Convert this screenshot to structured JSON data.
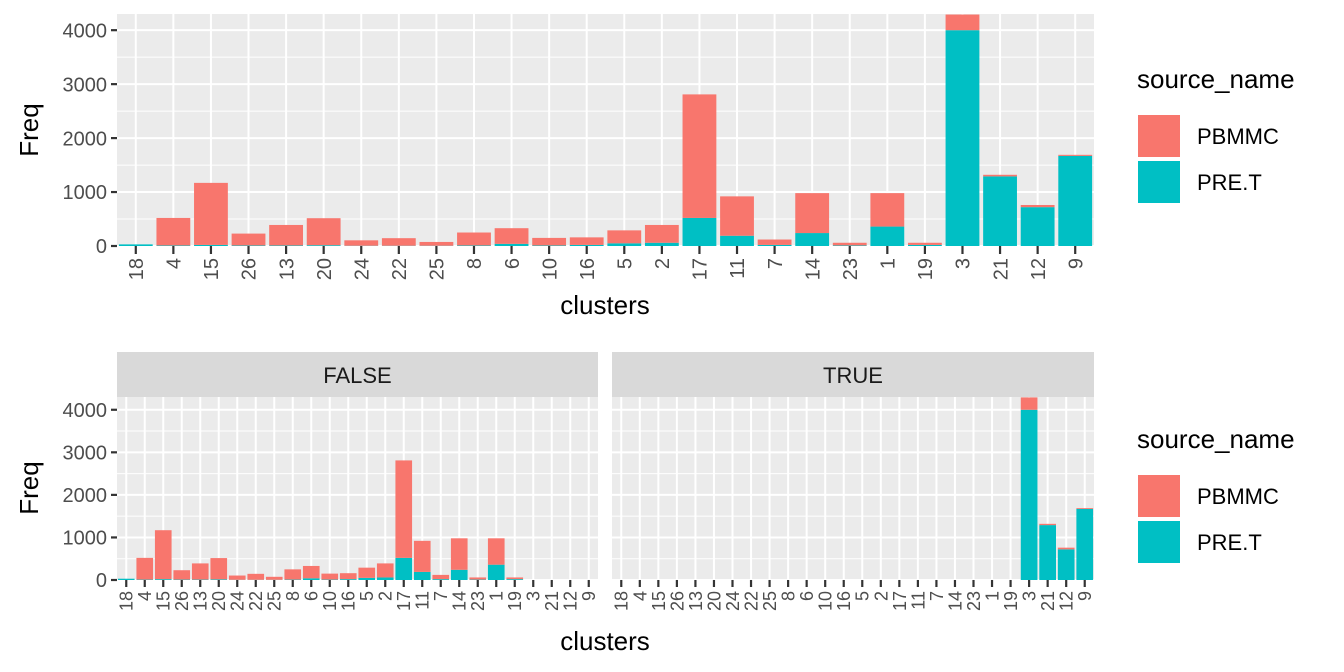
{
  "colors": {
    "PBMMC": "#F8766D",
    "PRE.T": "#00BFC4",
    "panel_bg": "#EBEBEB",
    "grid": "#FFFFFF",
    "strip_bg": "#D9D9D9",
    "tick_text": "#4D4D4D",
    "axis_title": "#000000"
  },
  "chart_data": [
    {
      "type": "bar",
      "stacked": true,
      "xlabel": "clusters",
      "ylabel": "Freq",
      "ylim": [
        0,
        4300
      ],
      "yticks": [
        0,
        1000,
        2000,
        3000,
        4000
      ],
      "categories": [
        "18",
        "4",
        "15",
        "26",
        "13",
        "20",
        "24",
        "22",
        "25",
        "8",
        "6",
        "10",
        "16",
        "5",
        "2",
        "17",
        "11",
        "7",
        "14",
        "23",
        "1",
        "19",
        "3",
        "21",
        "12",
        "9"
      ],
      "series": [
        {
          "name": "PRE.T",
          "values": [
            30,
            10,
            20,
            10,
            10,
            15,
            5,
            5,
            5,
            10,
            40,
            10,
            20,
            50,
            60,
            520,
            190,
            20,
            240,
            10,
            360,
            20,
            4000,
            1290,
            720,
            1670
          ]
        },
        {
          "name": "PBMMC",
          "values": [
            0,
            510,
            1150,
            220,
            380,
            500,
            100,
            140,
            70,
            240,
            290,
            140,
            140,
            240,
            330,
            2290,
            730,
            100,
            740,
            50,
            620,
            40,
            290,
            30,
            40,
            20
          ]
        }
      ],
      "legend": {
        "title": "source_name",
        "entries": [
          "PBMMC",
          "PRE.T"
        ],
        "placement": "right"
      }
    },
    {
      "type": "bar",
      "stacked": true,
      "faceted": true,
      "facets": [
        "FALSE",
        "TRUE"
      ],
      "xlabel": "clusters",
      "ylabel": "Freq",
      "ylim": [
        0,
        4300
      ],
      "yticks": [
        0,
        1000,
        2000,
        3000,
        4000
      ],
      "categories": [
        "18",
        "4",
        "15",
        "26",
        "13",
        "20",
        "24",
        "22",
        "25",
        "8",
        "6",
        "10",
        "16",
        "5",
        "2",
        "17",
        "11",
        "7",
        "14",
        "23",
        "1",
        "19",
        "3",
        "21",
        "12",
        "9"
      ],
      "panels": [
        {
          "facet": "FALSE",
          "series": [
            {
              "name": "PRE.T",
              "values": [
                30,
                10,
                20,
                10,
                10,
                15,
                5,
                5,
                5,
                10,
                40,
                10,
                20,
                50,
                60,
                520,
                190,
                20,
                240,
                10,
                360,
                20,
                0,
                0,
                0,
                0
              ]
            },
            {
              "name": "PBMMC",
              "values": [
                0,
                510,
                1150,
                220,
                380,
                500,
                100,
                140,
                70,
                240,
                290,
                140,
                140,
                240,
                330,
                2290,
                730,
                100,
                740,
                50,
                620,
                40,
                0,
                0,
                0,
                0
              ]
            }
          ]
        },
        {
          "facet": "TRUE",
          "series": [
            {
              "name": "PRE.T",
              "values": [
                0,
                0,
                0,
                0,
                0,
                0,
                0,
                0,
                0,
                0,
                0,
                0,
                0,
                0,
                0,
                0,
                0,
                0,
                0,
                0,
                0,
                0,
                4000,
                1290,
                720,
                1670
              ]
            },
            {
              "name": "PBMMC",
              "values": [
                0,
                0,
                0,
                0,
                0,
                0,
                0,
                0,
                0,
                0,
                0,
                0,
                0,
                0,
                0,
                0,
                0,
                0,
                0,
                0,
                0,
                0,
                290,
                30,
                40,
                20
              ]
            }
          ]
        }
      ],
      "legend": {
        "title": "source_name",
        "entries": [
          "PBMMC",
          "PRE.T"
        ],
        "placement": "right"
      }
    }
  ]
}
